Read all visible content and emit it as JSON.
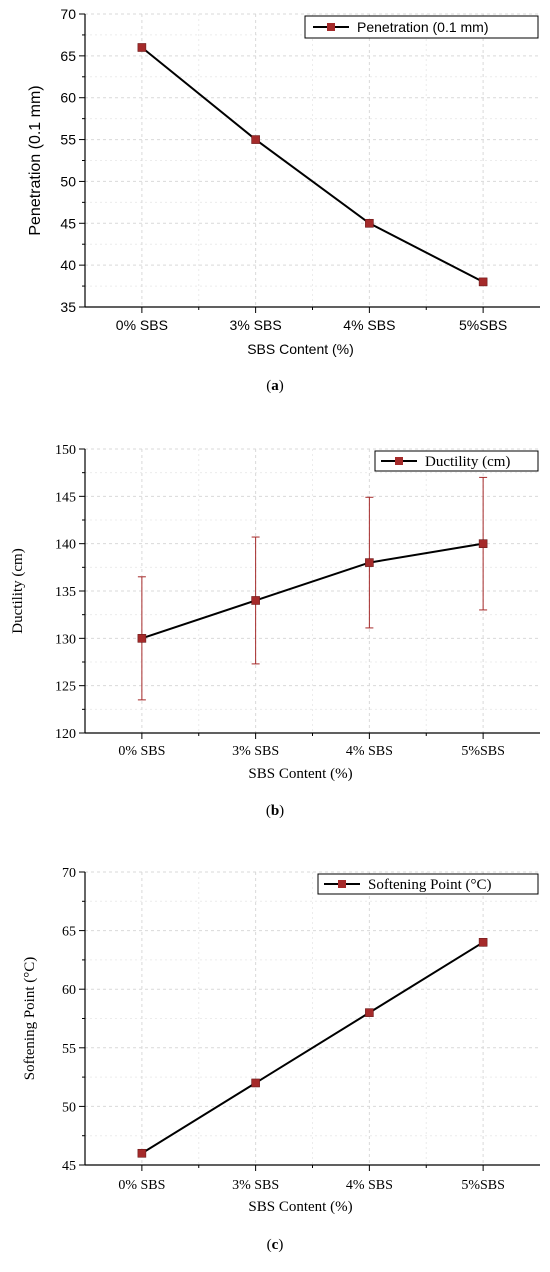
{
  "chart_data": [
    {
      "type": "line",
      "categories": [
        "0% SBS",
        "3% SBS",
        "4% SBS",
        "5%SBS"
      ],
      "series": [
        {
          "name": "Penetration (0.1 mm)",
          "values": [
            66,
            55,
            45,
            38
          ]
        }
      ],
      "title": "",
      "xlabel": "SBS Content (%)",
      "ylabel": "Penetration (0.1 mm)",
      "ylim": [
        35,
        70
      ],
      "yticks": [
        35,
        40,
        45,
        50,
        55,
        60,
        65,
        70
      ],
      "grid": true,
      "legend": "top-right",
      "caption": "a",
      "marker_color": "#a52a2a"
    },
    {
      "type": "line",
      "categories": [
        "0% SBS",
        "3% SBS",
        "4% SBS",
        "5%SBS"
      ],
      "series": [
        {
          "name": "Ductility (cm)",
          "values": [
            130,
            134,
            138,
            140
          ],
          "error_low": [
            123.5,
            127.3,
            131.1,
            133.0
          ],
          "error_high": [
            136.5,
            140.7,
            144.9,
            147.0
          ]
        }
      ],
      "title": "",
      "xlabel": "SBS Content (%)",
      "ylabel": "Ductility (cm)",
      "ylim": [
        120,
        150
      ],
      "yticks": [
        120,
        125,
        130,
        135,
        140,
        145,
        150
      ],
      "grid": true,
      "legend": "top-right",
      "caption": "b",
      "marker_color": "#a52a2a"
    },
    {
      "type": "line",
      "categories": [
        "0% SBS",
        "3% SBS",
        "4% SBS",
        "5%SBS"
      ],
      "series": [
        {
          "name": "Softening Point (°C)",
          "values": [
            46,
            52,
            58,
            64
          ]
        }
      ],
      "title": "",
      "xlabel": "SBS Content (%)",
      "ylabel": "Softening Point (°C)",
      "ylim": [
        45,
        70
      ],
      "yticks": [
        45,
        50,
        55,
        60,
        65,
        70
      ],
      "grid": true,
      "legend": "top-right",
      "caption": "c",
      "marker_color": "#a52a2a"
    }
  ]
}
